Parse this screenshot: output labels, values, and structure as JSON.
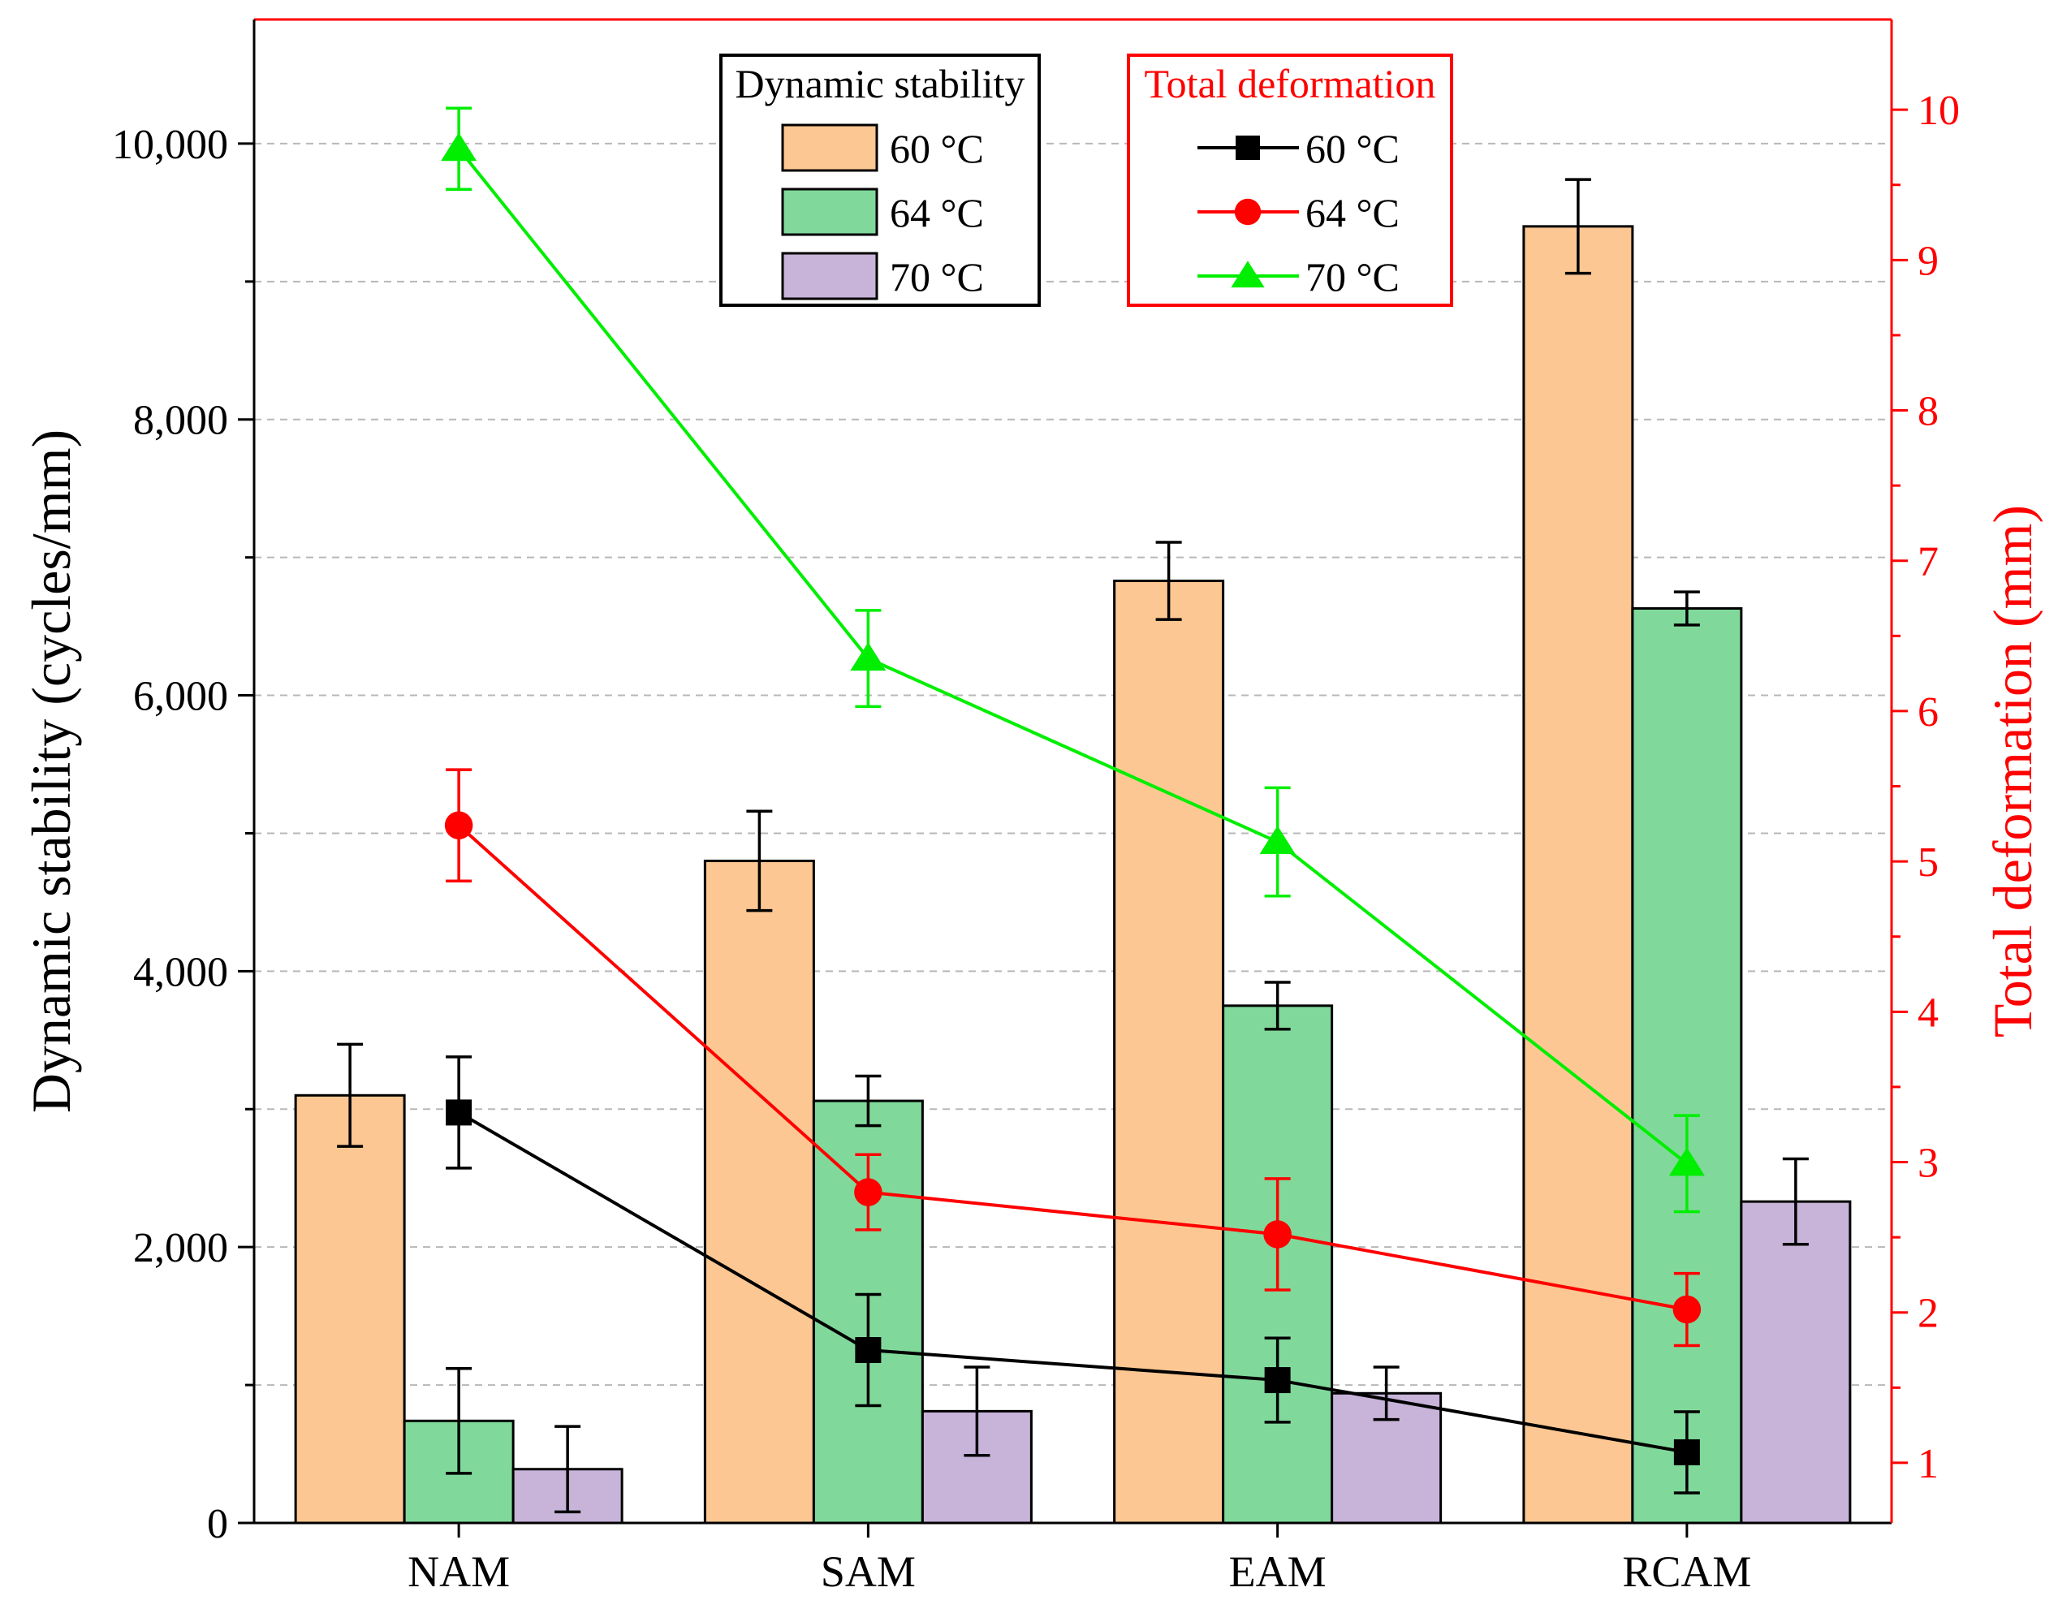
{
  "chart_data": {
    "type": "bar",
    "categories": [
      "NAM",
      "SAM",
      "EAM",
      "RCAM"
    ],
    "bar_series": [
      {
        "name": "60 °C",
        "color": "#FCC792",
        "values": [
          3100,
          4800,
          6830,
          9400
        ],
        "errors": [
          370,
          360,
          280,
          340
        ]
      },
      {
        "name": "64 °C",
        "color": "#80D99B",
        "values": [
          740,
          3060,
          3750,
          6630
        ],
        "errors": [
          380,
          180,
          170,
          120
        ]
      },
      {
        "name": "70 °C",
        "color": "#C8B3D9",
        "values": [
          390,
          810,
          940,
          2330
        ],
        "errors": [
          310,
          320,
          190,
          310
        ]
      }
    ],
    "line_series": [
      {
        "name": "60 °C",
        "color": "#000000",
        "marker": "square",
        "values": [
          3.33,
          1.75,
          1.55,
          1.07
        ],
        "errors": [
          0.37,
          0.37,
          0.28,
          0.27
        ]
      },
      {
        "name": "64 °C",
        "color": "#FF0000",
        "marker": "circle",
        "values": [
          5.24,
          2.8,
          2.52,
          2.02
        ],
        "errors": [
          0.37,
          0.25,
          0.37,
          0.24
        ]
      },
      {
        "name": "70 °C",
        "color": "#00EE00",
        "marker": "triangle",
        "values": [
          9.74,
          6.35,
          5.13,
          2.99
        ],
        "errors": [
          0.27,
          0.32,
          0.36,
          0.32
        ]
      }
    ],
    "ylabel": "Dynamic stability (cycles/mm)",
    "y2label": "Total deformation (mm)",
    "ylim": [
      0,
      10900
    ],
    "y2lim": [
      0.6,
      10.6
    ],
    "yticks": [
      0,
      2000,
      4000,
      6000,
      8000,
      10000
    ],
    "ytick_labels": [
      "0",
      "2,000",
      "4,000",
      "6,000",
      "8,000",
      "10,000"
    ],
    "y2ticks": [
      1,
      2,
      3,
      4,
      5,
      6,
      7,
      8,
      9,
      10
    ],
    "y2tick_labels": [
      "1",
      "2",
      "3",
      "4",
      "5",
      "6",
      "7",
      "8",
      "9",
      "10"
    ],
    "grid": "horizontal dashed",
    "legend_bars_title": "Dynamic stability",
    "legend_lines_title": "Total deformation",
    "legend_placement": "top-center",
    "left_axis_color": "#000000",
    "right_axis_color": "#FF0000"
  }
}
